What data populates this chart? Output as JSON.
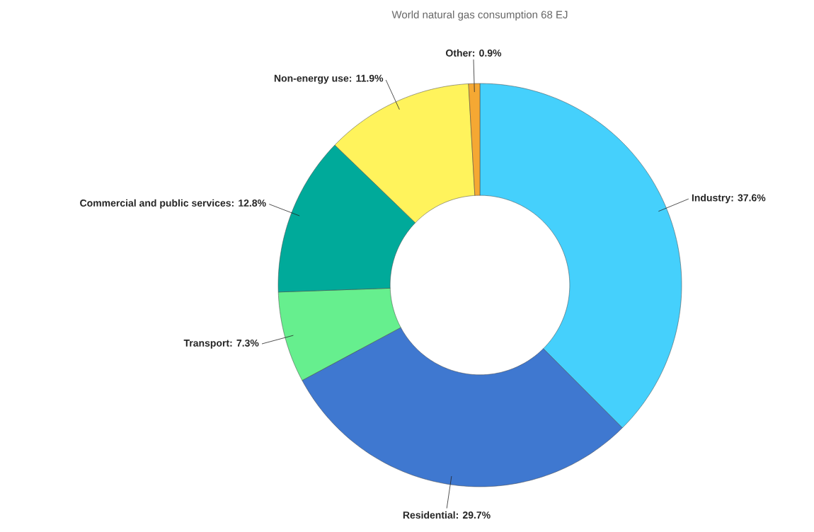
{
  "chart_data": {
    "type": "donut",
    "title": "World natural gas consumption 68 EJ",
    "categories": [
      "Industry: 37.6%",
      "Residential: 29.7%",
      "Transport: 7.3%",
      "Commercial and public services: 12.8%",
      "Non-energy use: 11.9%",
      "Other: 0.9%"
    ],
    "values": [
      37.6,
      29.7,
      7.3,
      12.8,
      11.9,
      0.9
    ],
    "colors": [
      "#45d0fc",
      "#3f78d0",
      "#66ef8e",
      "#00aa9a",
      "#fff35c",
      "#f5a833"
    ]
  }
}
